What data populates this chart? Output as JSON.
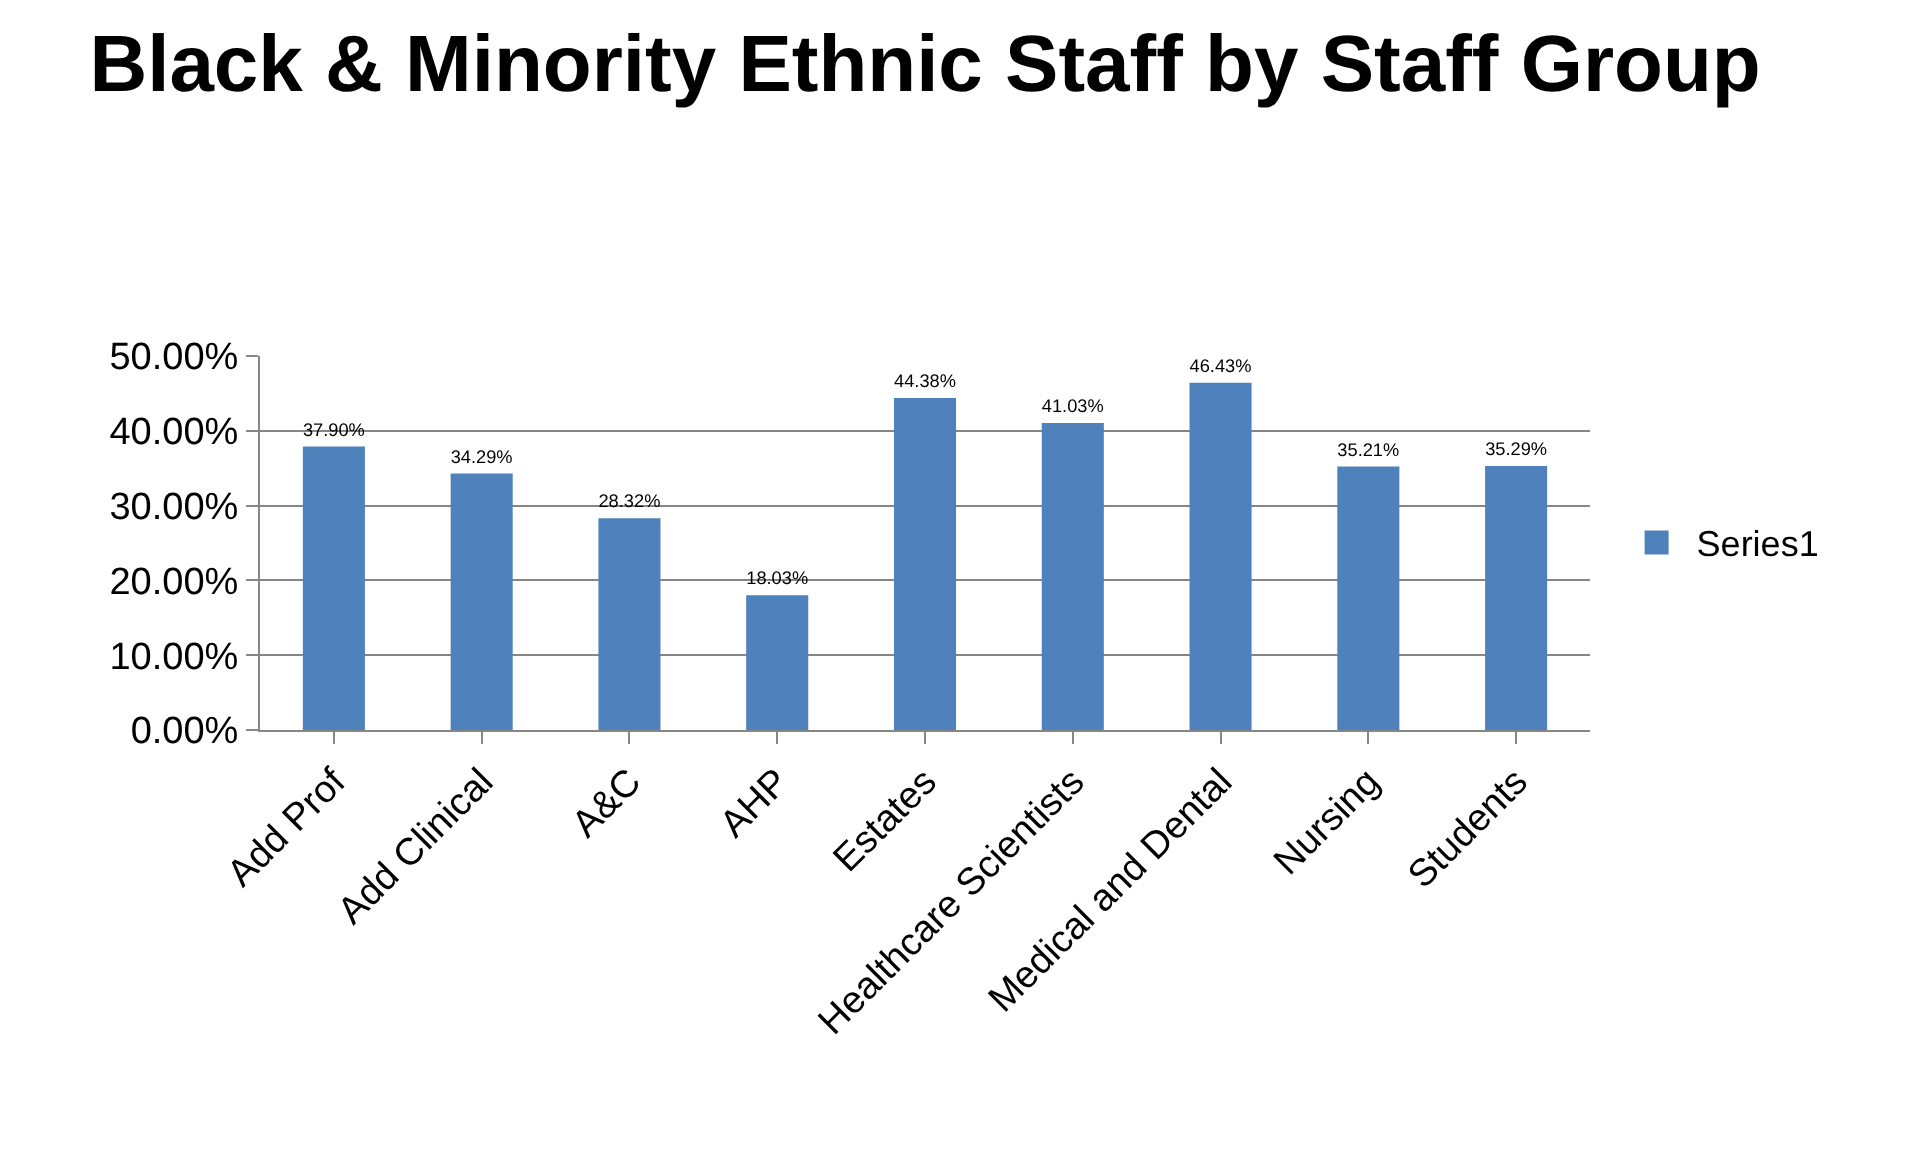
{
  "chart_data": {
    "type": "bar",
    "title": "Black & Minority Ethnic Staff by Staff Group",
    "categories": [
      "Add Prof",
      "Add Clinical",
      "A&C",
      "AHP",
      "Estates",
      "Healthcare Scientists",
      "Medical and Dental",
      "Nursing",
      "Students"
    ],
    "series": [
      {
        "name": "Series1",
        "color": "#4f81bd",
        "values": [
          37.9,
          34.29,
          28.32,
          18.03,
          44.38,
          41.03,
          46.43,
          35.21,
          35.29
        ],
        "value_labels": [
          "37.90%",
          "34.29%",
          "28.32%",
          "18.03%",
          "44.38%",
          "41.03%",
          "46.43%",
          "35.21%",
          "35.29%"
        ]
      }
    ],
    "ylim": [
      0,
      50
    ],
    "yticks": [
      {
        "value": 0,
        "label": "0.00%"
      },
      {
        "value": 10,
        "label": "10.00%"
      },
      {
        "value": 20,
        "label": "20.00%"
      },
      {
        "value": 30,
        "label": "30.00%"
      },
      {
        "value": 40,
        "label": "40.00%"
      },
      {
        "value": 50,
        "label": "50.00%"
      }
    ],
    "grid": "y",
    "legend": "right"
  }
}
